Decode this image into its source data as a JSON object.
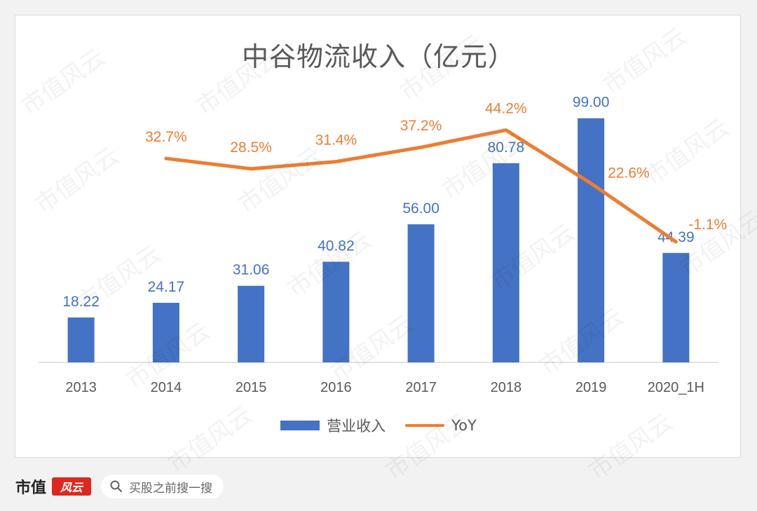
{
  "chart_data": {
    "type": "bar",
    "title": "中谷物流收入（亿元）",
    "categories": [
      "2013",
      "2014",
      "2015",
      "2016",
      "2017",
      "2018",
      "2019",
      "2020_1H"
    ],
    "series": [
      {
        "name": "营业收入",
        "type": "bar",
        "values": [
          18.22,
          24.17,
          31.06,
          40.82,
          56.0,
          80.78,
          99.0,
          44.39
        ],
        "labels": [
          "18.22",
          "24.17",
          "31.06",
          "40.82",
          "56.00",
          "80.78",
          "99.00",
          "44.39"
        ],
        "color": "#4472c4"
      },
      {
        "name": "YoY",
        "type": "line",
        "values": [
          null,
          32.7,
          28.5,
          31.4,
          37.2,
          44.2,
          22.6,
          -1.1
        ],
        "labels": [
          "",
          "32.7%",
          "28.5%",
          "31.4%",
          "37.2%",
          "44.2%",
          "22.6%",
          "-1.1%"
        ],
        "color": "#ed7d31"
      }
    ],
    "ylim": [
      0,
      110
    ],
    "y2lim": [
      -50,
      60
    ],
    "grid": false,
    "legend": "bottom"
  },
  "footer": {
    "brand": "市值",
    "seal": "风云",
    "search_placeholder": "买股之前搜一搜"
  },
  "watermark_text": "市值风云"
}
